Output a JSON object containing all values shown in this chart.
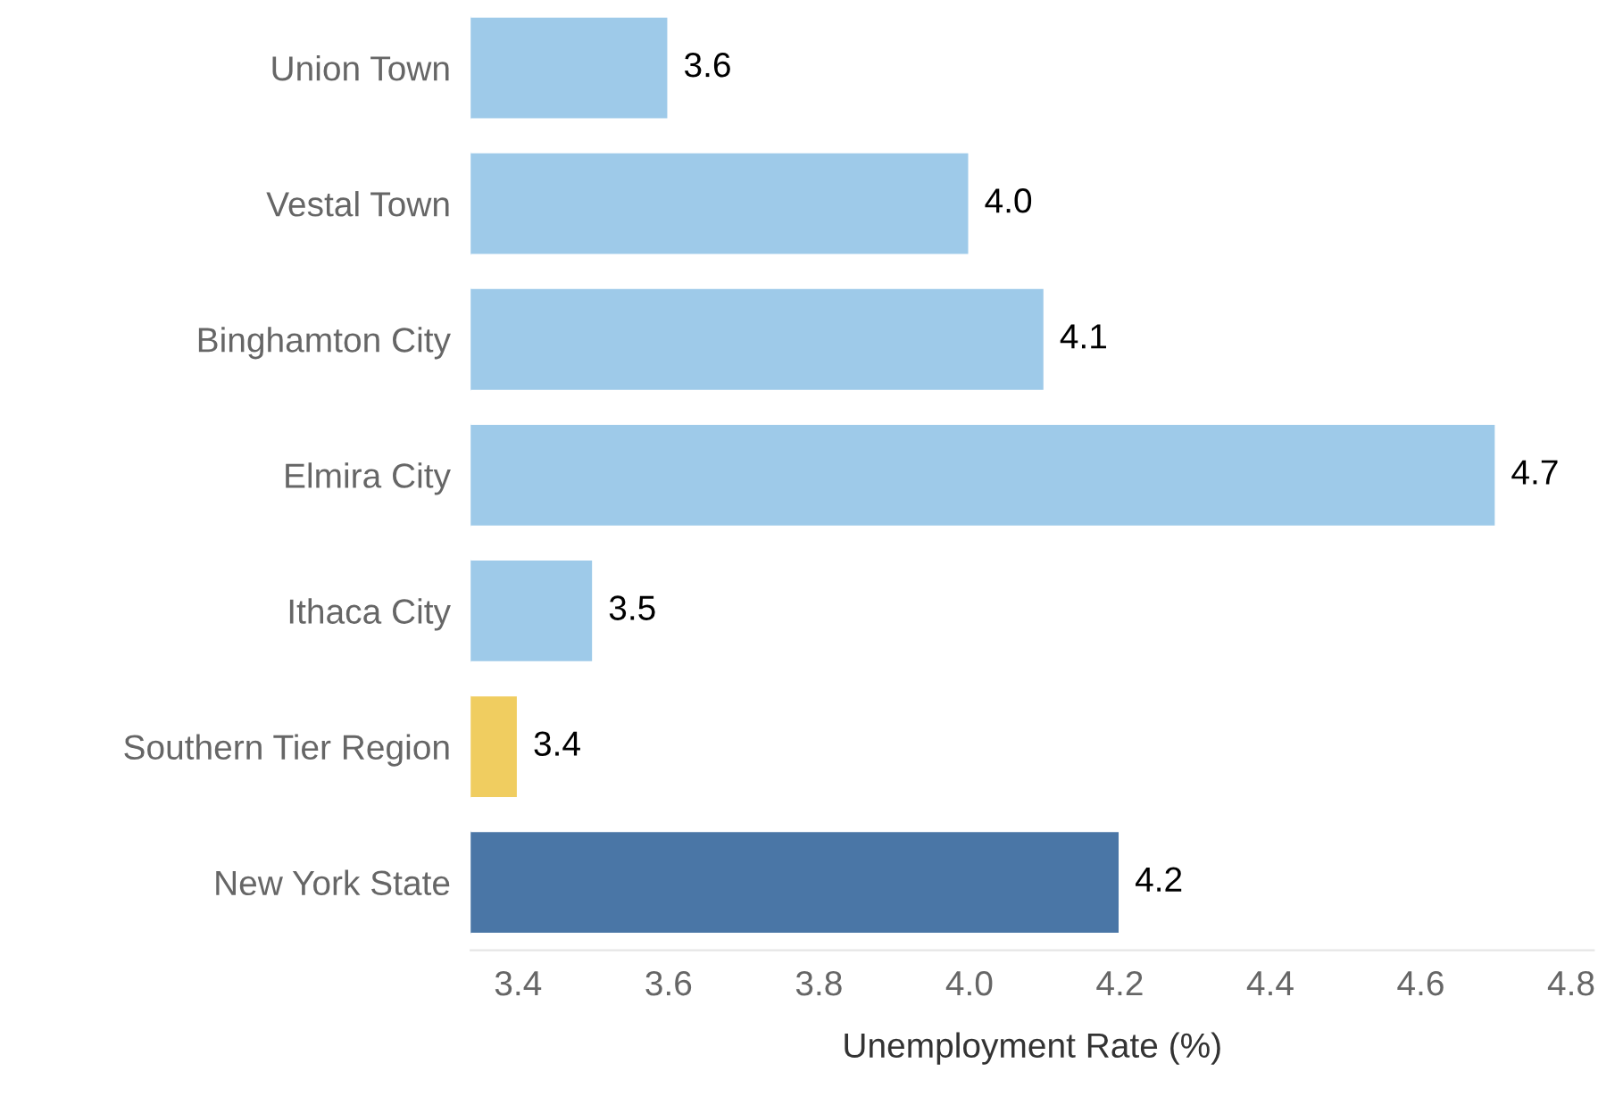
{
  "chart_data": {
    "type": "bar",
    "orientation": "horizontal",
    "xlabel": "Unemployment Rate (%)",
    "categories": [
      "Union Town",
      "Vestal Town",
      "Binghamton City",
      "Elmira City",
      "Ithaca City",
      "Southern Tier Region",
      "New York State"
    ],
    "values": [
      3.6,
      4.0,
      4.1,
      4.7,
      3.5,
      3.4,
      4.2
    ],
    "colors": [
      "#9ecae9",
      "#9ecae9",
      "#9ecae9",
      "#9ecae9",
      "#9ecae9",
      "#f0cd60",
      "#4a76a6"
    ],
    "value_labels": [
      "3.6",
      "4.0",
      "4.1",
      "4.7",
      "3.5",
      "3.4",
      "4.2"
    ],
    "xlim": [
      3.337,
      4.83
    ],
    "xticks": [
      3.4,
      3.6,
      3.8,
      {
        "value": 4.0,
        "label": "4.0"
      },
      4.2,
      4.4,
      4.6,
      4.8
    ],
    "grid": false,
    "legend": false
  }
}
